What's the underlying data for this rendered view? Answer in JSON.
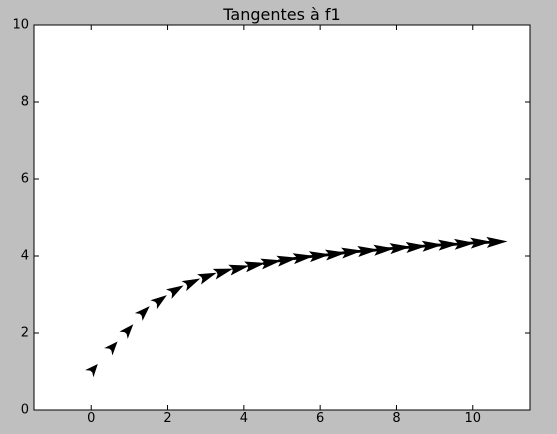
{
  "chart_data": {
    "type": "quiver",
    "title": "Tangentes à f1",
    "xlabel": "",
    "ylabel": "",
    "xlim": [
      -1.5,
      11.5
    ],
    "ylim": [
      0,
      10
    ],
    "xticks": [
      0,
      2,
      4,
      6,
      8,
      10
    ],
    "yticks": [
      0,
      2,
      4,
      6,
      8,
      10
    ],
    "grid": false,
    "colors": {
      "figure_bg": "#bfbfbf",
      "axes_bg": "#ffffff",
      "arrow": "#000000"
    },
    "arrows": {
      "x": [
        0,
        0.5,
        0.9,
        1.3,
        1.7,
        2.1,
        2.5,
        2.9,
        3.3,
        3.7,
        4.1,
        4.5,
        4.9,
        5.3,
        5.7,
        6.1,
        6.5,
        6.9,
        7.3,
        7.7,
        8.1,
        8.5,
        8.9,
        9.3,
        9.7,
        10.1
      ],
      "y": [
        1.0,
        1.57,
        2.0,
        2.47,
        2.78,
        3.05,
        3.25,
        3.42,
        3.55,
        3.65,
        3.73,
        3.8,
        3.87,
        3.93,
        3.98,
        4.02,
        4.07,
        4.11,
        4.14,
        4.18,
        4.21,
        4.24,
        4.27,
        4.29,
        4.32,
        4.34
      ]
    }
  }
}
